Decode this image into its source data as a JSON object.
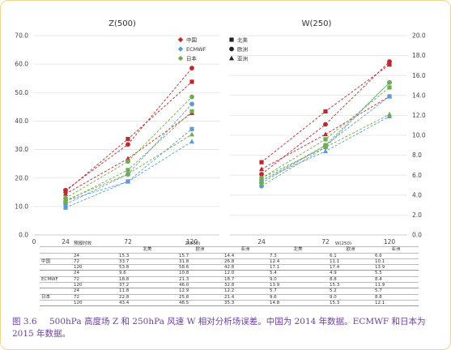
{
  "chart_data": [
    {
      "type": "line",
      "title": "Z(500)",
      "categories": [
        "24",
        "72",
        "120"
      ],
      "x_ticks": [
        "0",
        "24",
        "72",
        "120"
      ],
      "y_ticks": [
        "0.0",
        "10.0",
        "20.0",
        "30.0",
        "40.0",
        "50.0",
        "60.0",
        "70.0"
      ],
      "ylim": [
        0,
        70
      ],
      "legend": [
        "中国",
        "ECMWF",
        "日本"
      ],
      "series": [
        {
          "name": "中国",
          "metric": "北美",
          "marker": "square",
          "color": "#c0272d",
          "values": [
            15.3,
            33.7,
            53.8
          ]
        },
        {
          "name": "中国",
          "metric": "欧洲",
          "marker": "circle",
          "color": "#c0272d",
          "values": [
            15.7,
            31.8,
            58.6
          ]
        },
        {
          "name": "中国",
          "metric": "亚洲",
          "marker": "triangle",
          "color": "#c0272d",
          "values": [
            14.4,
            26.8,
            42.8
          ]
        },
        {
          "name": "ECMWF",
          "metric": "北美",
          "marker": "square",
          "color": "#5b9bd5",
          "values": [
            9.6,
            18.8,
            37.2
          ]
        },
        {
          "name": "ECMWF",
          "metric": "欧洲",
          "marker": "circle",
          "color": "#5b9bd5",
          "values": [
            10.8,
            21.3,
            46.0
          ]
        },
        {
          "name": "ECMWF",
          "metric": "亚洲",
          "marker": "triangle",
          "color": "#5b9bd5",
          "values": [
            12.0,
            18.7,
            32.8
          ]
        },
        {
          "name": "日本",
          "metric": "北美",
          "marker": "square",
          "color": "#70ad47",
          "values": [
            11.8,
            22.8,
            43.4
          ]
        },
        {
          "name": "日本",
          "metric": "欧洲",
          "marker": "circle",
          "color": "#70ad47",
          "values": [
            12.9,
            25.8,
            48.5
          ]
        },
        {
          "name": "日本",
          "metric": "亚洲",
          "marker": "triangle",
          "color": "#70ad47",
          "values": [
            12.2,
            21.4,
            35.3
          ]
        }
      ]
    },
    {
      "type": "line",
      "title": "W(250)",
      "categories": [
        "24",
        "72",
        "120"
      ],
      "y_ticks": [
        "0.0",
        "2.0",
        "4.0",
        "6.0",
        "8.0",
        "10.0",
        "12.0",
        "14.0",
        "16.0",
        "18.0",
        "20.0"
      ],
      "ylim": [
        0,
        20
      ],
      "legend": [
        "北美",
        "欧洲",
        "亚洲"
      ],
      "series": [
        {
          "name": "中国",
          "metric": "北美",
          "marker": "square",
          "color": "#c0272d",
          "values": [
            7.3,
            12.4,
            17.1
          ]
        },
        {
          "name": "中国",
          "metric": "欧洲",
          "marker": "circle",
          "color": "#c0272d",
          "values": [
            6.1,
            11.1,
            17.4
          ]
        },
        {
          "name": "中国",
          "metric": "亚洲",
          "marker": "triangle",
          "color": "#c0272d",
          "values": [
            6.6,
            10.1,
            13.9
          ]
        },
        {
          "name": "ECMWF",
          "metric": "北美",
          "marker": "square",
          "color": "#5b9bd5",
          "values": [
            5.4,
            9.0,
            13.9
          ]
        },
        {
          "name": "ECMWF",
          "metric": "欧洲",
          "marker": "circle",
          "color": "#5b9bd5",
          "values": [
            4.9,
            8.8,
            15.3
          ]
        },
        {
          "name": "ECMWF",
          "metric": "亚洲",
          "marker": "triangle",
          "color": "#5b9bd5",
          "values": [
            5.5,
            8.4,
            11.9
          ]
        },
        {
          "name": "日本",
          "metric": "北美",
          "marker": "square",
          "color": "#70ad47",
          "values": [
            5.7,
            9.6,
            14.8
          ]
        },
        {
          "name": "日本",
          "metric": "欧洲",
          "marker": "circle",
          "color": "#70ad47",
          "values": [
            5.2,
            9.0,
            15.3
          ]
        },
        {
          "name": "日本",
          "metric": "亚洲",
          "marker": "triangle",
          "color": "#70ad47",
          "values": [
            5.7,
            8.8,
            12.1
          ]
        }
      ]
    }
  ],
  "table": {
    "header1": [
      "预报时效",
      "Z(500)",
      "W(250)"
    ],
    "header2": [
      "北美",
      "欧洲",
      "亚洲",
      "北美",
      "欧洲",
      "亚洲"
    ],
    "groups": [
      {
        "model": "中国",
        "rows": [
          [
            "24",
            "15.3",
            "15.7",
            "14.4",
            "7.3",
            "6.1",
            "6.6"
          ],
          [
            "72",
            "33.7",
            "31.8",
            "26.8",
            "12.4",
            "11.1",
            "10.1"
          ],
          [
            "120",
            "53.8",
            "58.6",
            "42.8",
            "17.1",
            "17.4",
            "13.9"
          ]
        ]
      },
      {
        "model": "ECMWF",
        "rows": [
          [
            "24",
            "9.6",
            "10.8",
            "12.0",
            "5.4",
            "4.9",
            "5.5"
          ],
          [
            "72",
            "18.8",
            "21.3",
            "18.7",
            "9.0",
            "8.8",
            "8.4"
          ],
          [
            "120",
            "37.2",
            "46.0",
            "32.8",
            "13.9",
            "15.3",
            "11.9"
          ]
        ]
      },
      {
        "model": "日本",
        "rows": [
          [
            "24",
            "11.8",
            "12.9",
            "12.2",
            "5.7",
            "5.2",
            "5.7"
          ],
          [
            "72",
            "22.8",
            "25.8",
            "21.4",
            "9.6",
            "9.0",
            "8.8"
          ],
          [
            "120",
            "43.4",
            "48.5",
            "35.3",
            "14.8",
            "15.3",
            "12.1"
          ]
        ]
      }
    ]
  },
  "caption": {
    "number": "图 3.6",
    "text": "500hPa 高度场 Z 和 250hPa 风速 W 相对分析场误差。中国为 2014 年数据。ECMWF 和日本为 2015 年数据。"
  }
}
